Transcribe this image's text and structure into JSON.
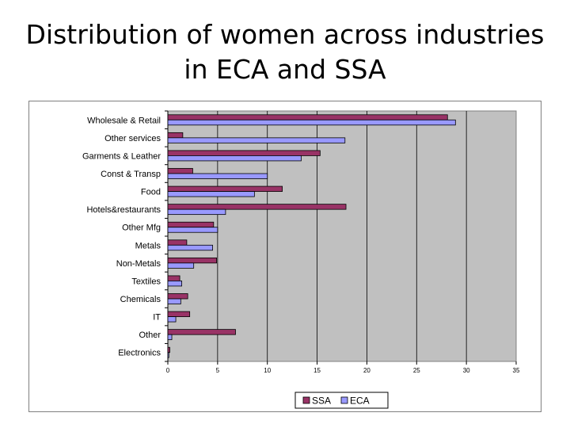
{
  "title": "Distribution of women across industries in ECA and SSA",
  "title_lines": [
    "Distribution of women across industries",
    "in ECA and SSA"
  ],
  "chart_data": {
    "type": "bar",
    "orientation": "horizontal",
    "title": "Distribution of women across industries in ECA and SSA",
    "categories": [
      "Wholesale & Retail",
      "Other services",
      "Garments & Leather",
      "Const & Transp",
      "Food",
      "Hotels&restaurants",
      "Other Mfg",
      "Metals",
      "Non-Metals",
      "Textiles",
      "Chemicals",
      "IT",
      "Other",
      "Electronics"
    ],
    "series": [
      {
        "name": "SSA",
        "color": "#993366",
        "values": [
          28.1,
          1.5,
          15.3,
          2.5,
          11.5,
          17.9,
          4.6,
          1.9,
          4.9,
          1.2,
          2.0,
          2.2,
          6.8,
          0.2
        ]
      },
      {
        "name": "ECA",
        "color": "#9999ff",
        "values": [
          28.9,
          17.8,
          13.4,
          10.0,
          8.7,
          5.8,
          5.0,
          4.5,
          2.6,
          1.4,
          1.3,
          0.8,
          0.4,
          0.1
        ]
      }
    ],
    "xlim": [
      0,
      35
    ],
    "xticks": [
      "0",
      "5",
      "10",
      "15",
      "20",
      "25",
      "30",
      "35"
    ],
    "grid": true,
    "legend_position": "bottom",
    "plot_background": "#c0c0c0"
  }
}
